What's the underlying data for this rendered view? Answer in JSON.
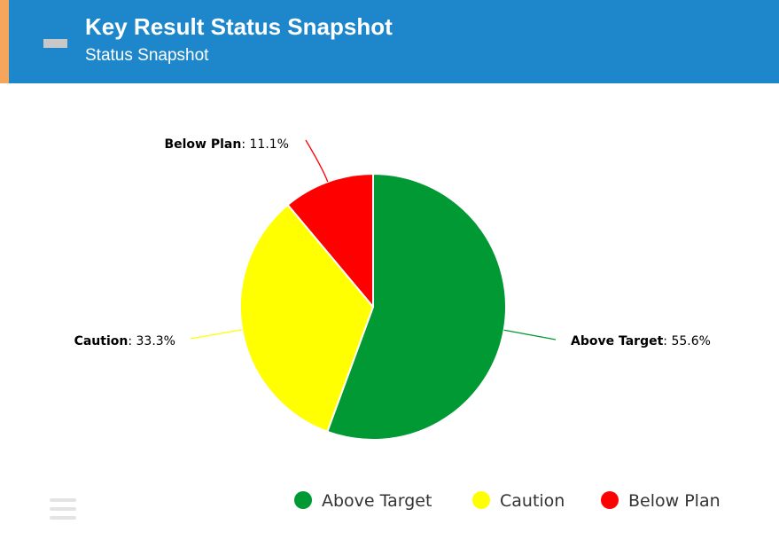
{
  "header": {
    "title": "Key Result Status Snapshot",
    "subtitle": "Status Snapshot",
    "background_color": "#1e86cb",
    "accent_color": "#f6a55c"
  },
  "toolbar": {
    "collapse_icon": "minus-icon",
    "menu_icon": "hamburger-menu-icon"
  },
  "chart_data": {
    "type": "pie",
    "title": "Key Result Status Snapshot",
    "subtitle": "Status Snapshot",
    "legend_position": "bottom-right",
    "slices": [
      {
        "label": "Above Target",
        "value": 55.6,
        "value_label": "55.6%",
        "color": "#009933"
      },
      {
        "label": "Caution",
        "value": 33.3,
        "value_label": "33.3%",
        "color": "#ffff00"
      },
      {
        "label": "Below Plan",
        "value": 11.1,
        "value_label": "11.1%",
        "color": "#ff0000"
      }
    ]
  }
}
